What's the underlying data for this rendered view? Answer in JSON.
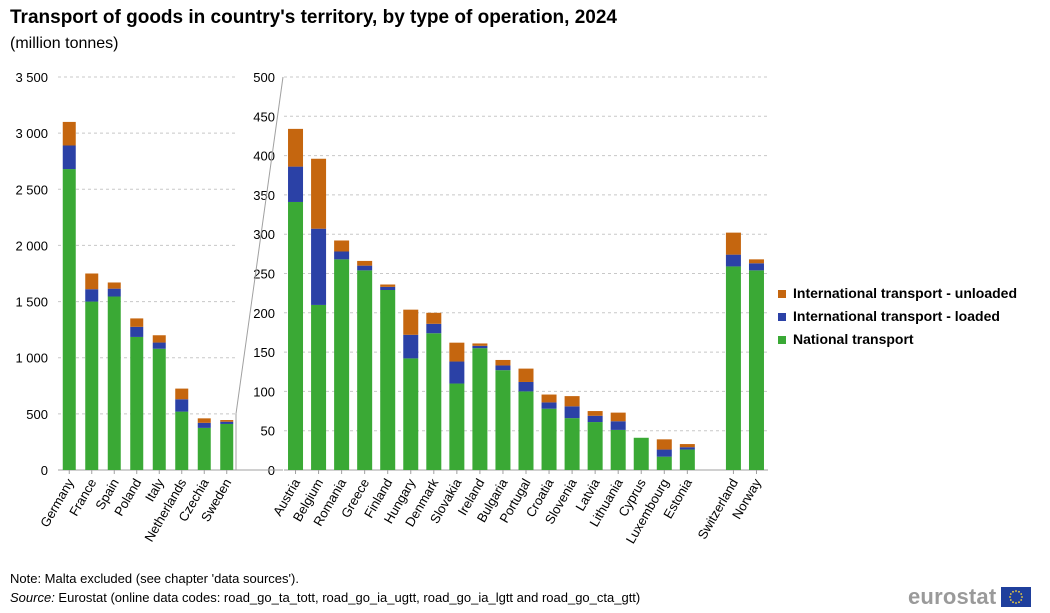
{
  "title": "Transport of goods in country's territory, by type of operation, 2024",
  "subtitle": "(million  tonnes)",
  "note": "Note: Malta excluded (see chapter 'data sources').",
  "source_label": "Source:",
  "source_text": " Eurostat (online data codes: road_go_ta_tott, road_go_ia_ugtt, road_go_ia_lgtt and road_go_cta_gtt)",
  "logo_text": "eurostat",
  "colors": {
    "national": "#3aa935",
    "loaded": "#2b41a6",
    "unloaded": "#c5660f",
    "grid": "#c8c8c8",
    "axis": "#a0a0a0",
    "flag_blue": "#1f3f9c",
    "flag_star": "#f5d33a"
  },
  "chart_data": [
    {
      "type": "bar",
      "stacked": true,
      "categories": [
        "Germany",
        "France",
        "Spain",
        "Poland",
        "Italy",
        "Netherlands",
        "Czechia",
        "Sweden"
      ],
      "series": [
        {
          "name": "National transport",
          "values": [
            2680,
            1500,
            1545,
            1185,
            1080,
            520,
            375,
            410
          ]
        },
        {
          "name": "International transport - loaded",
          "values": [
            210,
            110,
            70,
            90,
            55,
            110,
            45,
            20
          ]
        },
        {
          "name": "International transport - unloaded",
          "values": [
            210,
            140,
            55,
            75,
            65,
            95,
            40,
            15
          ]
        }
      ],
      "ylim": [
        0,
        3500
      ],
      "yticks": [
        "0",
        "500",
        "1 000",
        "1 500",
        "2 000",
        "2 500",
        "3 000",
        "3 500"
      ],
      "grid": true
    },
    {
      "type": "bar",
      "stacked": true,
      "categories": [
        "Austria",
        "Belgium",
        "Romania",
        "Greece",
        "Finland",
        "Hungary",
        "Denmark",
        "Slovakia",
        "Ireland",
        "Bulgaria",
        "Portugal",
        "Croatia",
        "Slovenia",
        "Latvia",
        "Lithuania",
        "Cyprus",
        "Luxembourg",
        "Estonia",
        "",
        "Switzerland",
        "Norway"
      ],
      "series": [
        {
          "name": "National transport",
          "values": [
            341,
            210,
            268,
            254,
            229,
            142,
            174,
            110,
            155,
            127,
            100,
            78,
            66,
            61,
            51,
            41,
            17,
            26,
            null,
            259,
            254
          ]
        },
        {
          "name": "International transport - loaded",
          "values": [
            45,
            97,
            10,
            6,
            4,
            30,
            12,
            28,
            3,
            6,
            12,
            8,
            15,
            8,
            11,
            0,
            9,
            3,
            null,
            15,
            9
          ]
        },
        {
          "name": "International transport - unloaded",
          "values": [
            48,
            89,
            14,
            6,
            3,
            32,
            14,
            24,
            3,
            7,
            17,
            10,
            13,
            6,
            11,
            0,
            13,
            4,
            null,
            28,
            5
          ]
        }
      ],
      "ylim": [
        0,
        500
      ],
      "yticks": [
        "0",
        "50",
        "100",
        "150",
        "200",
        "250",
        "300",
        "350",
        "400",
        "450",
        "500"
      ],
      "grid": true
    }
  ],
  "legend": [
    {
      "label": "International transport - unloaded",
      "color": "#c5660f"
    },
    {
      "label": "International transport - loaded",
      "color": "#2b41a6"
    },
    {
      "label": "National transport",
      "color": "#3aa935"
    }
  ]
}
